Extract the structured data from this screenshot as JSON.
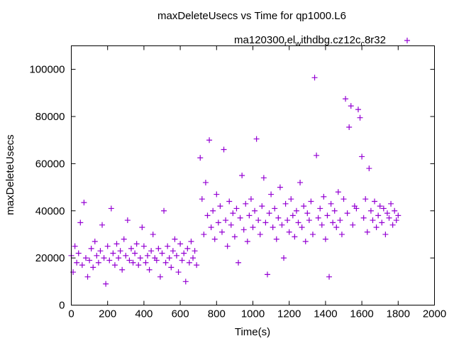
{
  "chart_data": {
    "type": "scatter",
    "title": "maxDeleteUsecs vs Time for qp1000.L6",
    "xlabel": "Time(s)",
    "ylabel": "maxDeleteUsecs",
    "xlim": [
      0,
      2000
    ],
    "ylim": [
      0,
      110000
    ],
    "xticks": [
      0,
      200,
      400,
      600,
      800,
      1000,
      1200,
      1400,
      1600,
      1800,
      2000
    ],
    "yticks": [
      0,
      20000,
      40000,
      60000,
      80000,
      100000
    ],
    "grid": false,
    "legend": {
      "position": "top-right",
      "entries": [
        "ma120300_rel_withdbg.cz12c_c8r32"
      ],
      "label_main": "ma120300",
      "sub1": "r",
      "mid1": "el",
      "sub2": "w",
      "mid2": "ithdbg.cz12c",
      "sub3": "c",
      "tail": "8r32"
    },
    "marker": "plus",
    "color": "#9400D3",
    "series": [
      {
        "name": "ma120300_rel_withdbg.cz12c_c8r32",
        "x_start": 0,
        "x_step": 10,
        "values": [
          21000,
          14000,
          25000,
          18000,
          22000,
          35000,
          17000,
          43500,
          20000,
          12000,
          19000,
          24000,
          16000,
          27000,
          21000,
          18000,
          23000,
          34000,
          20000,
          9000,
          25000,
          19000,
          41000,
          22000,
          17000,
          26000,
          20000,
          23000,
          15000,
          28000,
          21000,
          36000,
          19000,
          24000,
          18000,
          22000,
          26000,
          17000,
          20000,
          33000,
          25000,
          18000,
          21000,
          15000,
          23000,
          30000,
          20000,
          19000,
          24000,
          12000,
          22000,
          40000,
          18000,
          25000,
          20000,
          16000,
          23000,
          28000,
          21000,
          14000,
          26000,
          19000,
          22000,
          10000,
          24000,
          18000,
          27000,
          20000,
          23000,
          17000
        ]
      },
      {
        "name": "ma120300_rel_withdbg.cz12c_c8r32",
        "x_start": 710,
        "x_step": 10,
        "values": [
          62500,
          45000,
          30000,
          52000,
          38000,
          70000,
          33000,
          40000,
          28000,
          47000,
          35000,
          42000,
          31000,
          66000,
          36000,
          25000,
          44000,
          34000,
          39000,
          29000,
          41000,
          18000,
          37000,
          55000,
          32000,
          43000,
          27000,
          38000,
          45000,
          33000,
          40000,
          70500,
          36000,
          30000,
          42000,
          54000,
          35000,
          13000,
          39000,
          47000,
          33000,
          41000,
          28000,
          37000,
          50000,
          34000,
          20000,
          43000,
          36000,
          31000,
          45000,
          38000,
          29000,
          40000,
          35000,
          52000,
          33000,
          42000,
          27000,
          39000,
          36000,
          44000,
          30000,
          96500,
          63500,
          37000,
          41000,
          34000,
          46000,
          28000,
          38000,
          12000,
          43000,
          35000,
          40000,
          33000,
          48000,
          36000,
          30000,
          45000,
          87500,
          39000,
          75500,
          84500,
          34000,
          42000,
          41000,
          83000,
          79500,
          63000,
          37000,
          45000,
          31000,
          58000,
          40000,
          36000,
          44000,
          33000,
          38000,
          42000,
          35000,
          41000,
          30000,
          39000,
          37000,
          43000,
          34000,
          40000,
          36000,
          38000
        ]
      }
    ]
  }
}
